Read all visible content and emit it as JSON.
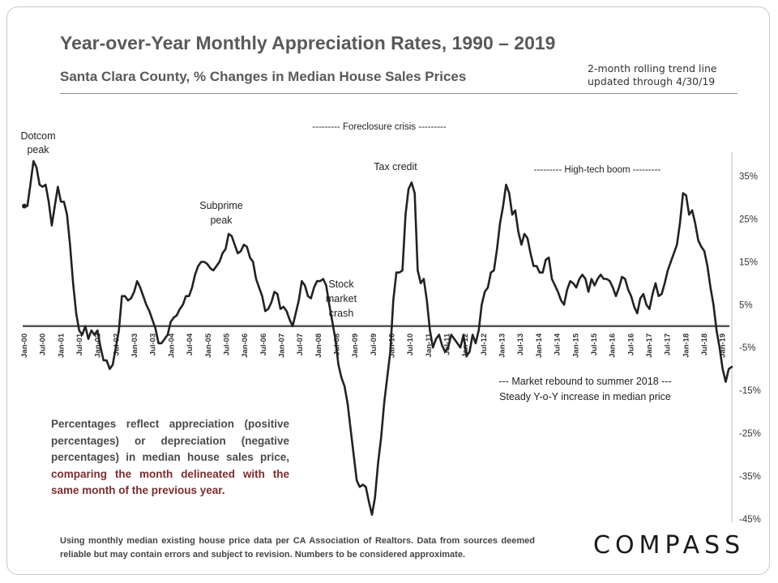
{
  "header": {
    "title": "Year-over-Year Monthly Appreciation Rates, 1990 – 2019",
    "subtitle": "Santa Clara County, % Changes in Median House Sales Prices",
    "trend_note_line1": "2-month rolling trend line",
    "trend_note_line2": "updated through 4/30/19"
  },
  "note": {
    "text_plain": "Percentages reflect appreciation (positive percentages) or depreciation (negative percentages) in median house sales price, ",
    "text_highlight": "comparing the month delineated with the same month of the previous year."
  },
  "footer": {
    "text": "Using monthly median existing house price data per CA Association of Realtors. Data from sources deemed reliable but may contain errors and subject to revision. Numbers to be considered approximate."
  },
  "logo": {
    "text": "COMPASS"
  },
  "colors": {
    "line": "#222222",
    "zero_line": "#555555",
    "highlight": "#7b2d2d",
    "text": "#595959"
  },
  "chart_data": {
    "type": "line",
    "title": "Year-over-Year Monthly Appreciation Rates, 1990 – 2019",
    "subtitle": "Santa Clara County, % Changes in Median House Sales Prices",
    "xlabel": "",
    "ylabel": "",
    "ylim": [
      -45,
      40
    ],
    "y_ticks": [
      35,
      25,
      15,
      5,
      -5,
      -15,
      -25,
      -35,
      -45
    ],
    "y_tick_labels": [
      "35%",
      "25%",
      "15%",
      "5%",
      "-5%",
      "-15%",
      "-25%",
      "-35%",
      "-45%"
    ],
    "y_axis_side": "right",
    "grid": false,
    "x_ticks": [
      "Jan-00",
      "Jul-00",
      "Jan-01",
      "Jul-01",
      "Jan-02",
      "Jul-02",
      "Jan-03",
      "Jul-03",
      "Jan-04",
      "Jul-04",
      "Jan-05",
      "Jul-05",
      "Jan-06",
      "Jul-06",
      "Jan-07",
      "Jul-07",
      "Jan-08",
      "Jul-08",
      "Jan-09",
      "Jul-09",
      "Jan-10",
      "Jul-10",
      "Jan-11",
      "Jul-11",
      "Jan-12",
      "Jul-12",
      "Jan-13",
      "Jul-13",
      "Jan-14",
      "Jul-14",
      "Jan-15",
      "Jul-15",
      "Jan-16",
      "Jul-16",
      "Jan-17",
      "Jul-17",
      "Jan-18",
      "Jul-18",
      "Jan-19"
    ],
    "x_start": "2000-01",
    "x_end": "2019-04",
    "series": [
      {
        "values": [
          28,
          28,
          33,
          38.5,
          37,
          33,
          32.5,
          33,
          29,
          23.5,
          28,
          32.5,
          29,
          29,
          26,
          19,
          10,
          3,
          -1,
          -2,
          0,
          -3,
          -1,
          -2,
          -1,
          -5,
          -8,
          -8,
          -10,
          -9,
          -5,
          -1,
          7,
          7,
          6,
          6.5,
          8,
          10.5,
          9,
          7,
          5,
          3.5,
          1.5,
          -0.5,
          -4,
          -4,
          -3,
          -2,
          1,
          2,
          2.5,
          4,
          5,
          7,
          7,
          9,
          12,
          14,
          15,
          15,
          14.5,
          13.5,
          13,
          14,
          15,
          17,
          18,
          21.5,
          21,
          19,
          17,
          17.5,
          19,
          18.5,
          16,
          15,
          11,
          9,
          7,
          3.5,
          4,
          5.5,
          8,
          7.5,
          4,
          4.5,
          3.5,
          1.5,
          0,
          3,
          6,
          10.5,
          9.5,
          7,
          6.5,
          9,
          10.5,
          10.5,
          11,
          9.5,
          5,
          1,
          -3,
          -9,
          -12,
          -14,
          -18,
          -24,
          -30,
          -36,
          -37.5,
          -37,
          -37.5,
          -41,
          -44,
          -40,
          -32,
          -26,
          -18,
          -12,
          -6,
          6,
          12.5,
          12.5,
          13,
          26,
          32,
          33.5,
          31,
          13,
          10,
          11,
          6,
          -1,
          -5,
          -3,
          -2,
          -4.5,
          -6,
          -5,
          -2,
          -3,
          -4,
          -5,
          -2,
          -7,
          -6,
          -2,
          -4,
          -1,
          5,
          8,
          9,
          12.5,
          13,
          18,
          24,
          28,
          33,
          31,
          26,
          27,
          22,
          19,
          21.5,
          20.5,
          17,
          14,
          14,
          12.5,
          12.5,
          15.5,
          16,
          11,
          9.5,
          8,
          6,
          5,
          8.5,
          10.5,
          10,
          9,
          11,
          12,
          11,
          8,
          11,
          9.5,
          11,
          12,
          11,
          11,
          10.5,
          9,
          7,
          9,
          11.5,
          11,
          8.5,
          7,
          4.5,
          3,
          6.5,
          7.5,
          5,
          4,
          7.5,
          10,
          7,
          7.5,
          10,
          13,
          15,
          17,
          19,
          24,
          31,
          30.5,
          26,
          27,
          24,
          20,
          18.5,
          17.5,
          14,
          9,
          5,
          -1,
          -5,
          -10,
          -13,
          -10,
          -9.5
        ]
      }
    ],
    "annotations": [
      "Dotcom peak",
      "Subprime peak",
      "Stock market crash",
      "Tax credit",
      "--------- Foreclosure crisis ---------",
      "--------- High-tech boom ---------",
      "--- Market rebound to summer 2018 ---",
      "Steady Y-o-Y increase in median price"
    ]
  }
}
